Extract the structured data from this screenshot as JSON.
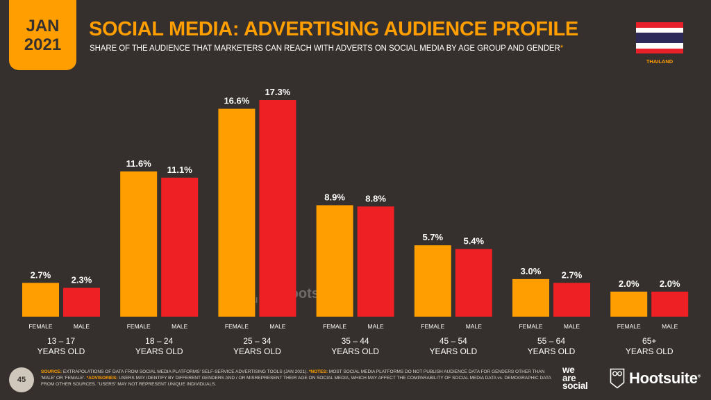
{
  "header": {
    "date_month": "JAN",
    "date_year": "2021",
    "title": "SOCIAL MEDIA: ADVERTISING AUDIENCE PROFILE",
    "subtitle": "SHARE OF THE AUDIENCE THAT MARKETERS CAN REACH WITH ADVERTS ON SOCIAL MEDIA BY AGE GROUP AND GENDER",
    "subtitle_marker": "*",
    "country": "THAILAND",
    "flag_colors": [
      "#e8202a",
      "#ffffff",
      "#2d2a5a",
      "#ffffff",
      "#e8202a"
    ]
  },
  "colors": {
    "background": "#35302d",
    "accent": "#ff9e00",
    "female": "#ff9e00",
    "male": "#ee2023"
  },
  "chart_data": {
    "type": "bar",
    "title": "SOCIAL MEDIA: ADVERTISING AUDIENCE PROFILE",
    "categories": [
      {
        "line1": "13 – 17",
        "line2": "YEARS OLD"
      },
      {
        "line1": "18 – 24",
        "line2": "YEARS OLD"
      },
      {
        "line1": "25 – 34",
        "line2": "YEARS OLD"
      },
      {
        "line1": "35 – 44",
        "line2": "YEARS OLD"
      },
      {
        "line1": "45 – 54",
        "line2": "YEARS OLD"
      },
      {
        "line1": "55 – 64",
        "line2": "YEARS OLD"
      },
      {
        "line1": "65+",
        "line2": "YEARS OLD"
      }
    ],
    "series": [
      {
        "name": "FEMALE",
        "values": [
          2.7,
          11.6,
          16.6,
          8.9,
          5.7,
          3.0,
          2.0
        ],
        "labels": [
          "2.7%",
          "11.6%",
          "16.6%",
          "8.9%",
          "5.7%",
          "3.0%",
          "2.0%"
        ]
      },
      {
        "name": "MALE",
        "values": [
          2.3,
          11.1,
          17.3,
          8.8,
          5.4,
          2.7,
          2.0
        ],
        "labels": [
          "2.3%",
          "11.1%",
          "17.3%",
          "8.8%",
          "5.4%",
          "2.7%",
          "2.0%"
        ]
      }
    ],
    "unit": "%",
    "ylim": [
      0,
      17.3
    ],
    "grid": false,
    "legend": "none"
  },
  "watermark": {
    "we_are_social": [
      "we",
      "are",
      "social"
    ],
    "hootsuite": "Hootsuite"
  },
  "footer": {
    "page_number": "45",
    "source_label": "SOURCE:",
    "source_text": " EXTRAPOLATIONS OF DATA FROM SOCIAL MEDIA PLATFORMS' SELF-SERVICE ADVERTISING TOOLS (JAN 2021). ",
    "notes_label": "*NOTES:",
    "notes_text": " MOST SOCIAL MEDIA PLATFORMS DO NOT PUBLISH AUDIENCE DATA FOR GENDERS OTHER THAN 'MALE' OR 'FEMALE'. ",
    "advisories_label": "*ADVISORIES:",
    "advisories_text": " USERS MAY IDENTIFY BY DIFFERENT GENDERS AND / OR MISREPRESENT THEIR AGE ON SOCIAL MEDIA, WHICH MAY AFFECT THE COMPARABILITY OF SOCIAL MEDIA DATA vs. DEMOGRAPHIC DATA FROM OTHER SOURCES. \"USERS\" MAY NOT REPRESENT UNIQUE INDIVIDUALS.",
    "logo_we_are_social": [
      "we",
      "are",
      "social"
    ],
    "logo_hootsuite": "Hootsuite",
    "logo_registered": "®"
  }
}
